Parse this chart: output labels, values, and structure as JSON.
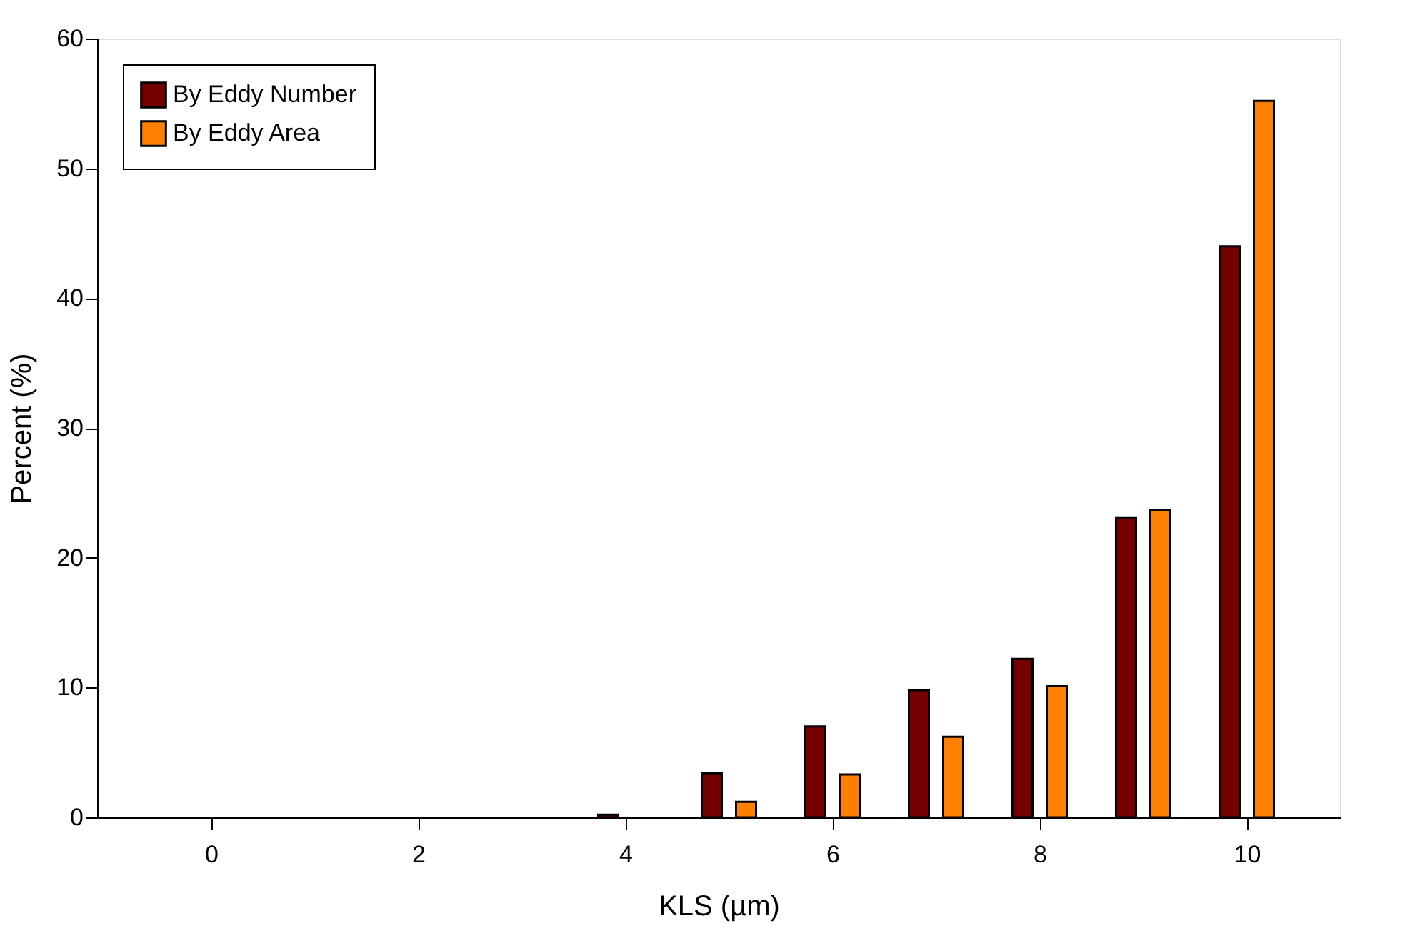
{
  "chart_data": {
    "type": "bar",
    "xlabel": "KLS (µm)",
    "ylabel": "Percent (%)",
    "x": [
      4,
      5,
      6,
      7,
      8,
      9,
      10
    ],
    "series": [
      {
        "name": "By Eddy Number",
        "color": "#750000",
        "values": [
          0.2,
          3.4,
          7.0,
          9.8,
          12.2,
          23.1,
          44.0
        ]
      },
      {
        "name": "By Eddy Area",
        "color": "#ff8000",
        "values": [
          null,
          1.2,
          3.3,
          6.2,
          10.1,
          23.7,
          55.2
        ]
      }
    ],
    "xlim": [
      -1.1,
      10.9
    ],
    "xticks": [
      0,
      2,
      4,
      6,
      8,
      10
    ],
    "ylim": [
      0,
      60
    ],
    "yticks": [
      0,
      10,
      20,
      30,
      40,
      50,
      60
    ],
    "grid": false,
    "legend": "top left"
  }
}
